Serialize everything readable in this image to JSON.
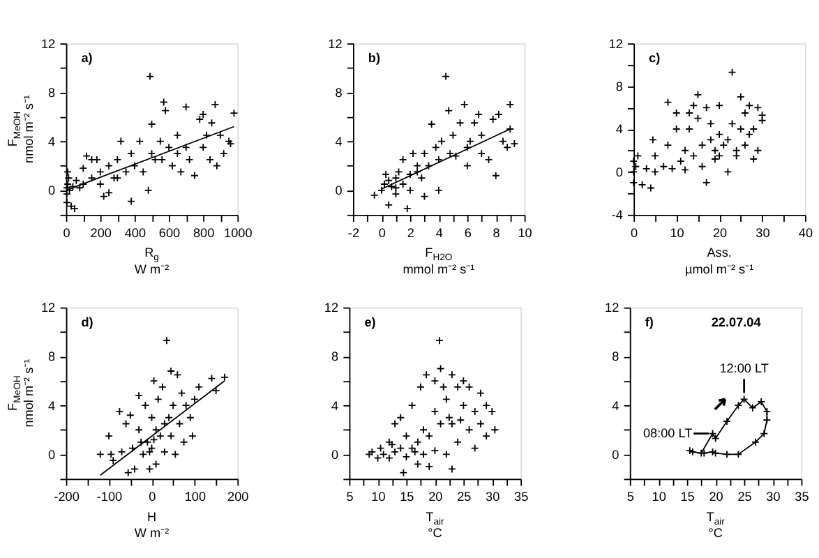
{
  "chart_data": [
    {
      "type": "scatter",
      "xlabel": "R$_{g}$\nW m⁻²",
      "ylabel": "F$_{MeOH}$\nnmol m⁻² s⁻¹",
      "annotations": [
        "a)"
      ],
      "xlim": [
        0,
        1000
      ],
      "xticks": [
        0,
        {
          "value": 100,
          "label": null
        },
        200,
        {
          "value": 300,
          "label": null
        },
        400,
        {
          "value": 500,
          "label": null
        },
        600,
        {
          "value": 700,
          "label": null
        },
        800,
        {
          "value": 900,
          "label": null
        },
        1000
      ],
      "ylim": [
        -2,
        12
      ],
      "yticks": [
        {
          "value": -2,
          "label": null
        },
        0,
        {
          "value": 2,
          "label": null
        },
        4,
        {
          "value": 6,
          "label": null
        },
        8,
        {
          "value": 10,
          "label": null
        },
        12
      ],
      "series": [
        {
          "marker": "cross",
          "color": "#000000",
          "x": [
            5,
            10,
            5,
            15,
            10,
            20,
            5,
            30,
            50,
            40,
            60,
            80,
            100,
            100,
            120,
            150,
            180,
            200,
            220,
            200,
            250,
            280,
            300,
            320,
            350,
            380,
            380,
            400,
            430,
            450,
            480,
            490,
            500,
            500,
            520,
            550,
            570,
            580,
            600,
            620,
            650,
            670,
            700,
            720,
            750,
            780,
            800,
            800,
            820,
            840,
            850,
            870,
            880,
            900,
            920,
            950,
            980,
            960,
            250,
            150,
            300,
            650,
            700,
            560
          ],
          "values": [
            0.2,
            0.5,
            -0.3,
            1,
            1.5,
            0,
            -1,
            -1.3,
            -1.5,
            0.3,
            0.8,
            0.2,
            0.5,
            1.8,
            2.8,
            1,
            2.5,
            0.5,
            -0.5,
            1.5,
            2,
            1,
            2.5,
            4,
            1.5,
            -0.9,
            3,
            2,
            4,
            1.5,
            0,
            9.3,
            5.4,
            3,
            2.5,
            4,
            7.2,
            6.5,
            3.5,
            2,
            4.5,
            1.5,
            6.8,
            2.5,
            1.2,
            5.8,
            6.2,
            3.5,
            4.5,
            2.5,
            5.5,
            7,
            2,
            4.5,
            3,
            4,
            6.3,
            3.8,
            -0.2,
            2.5,
            1,
            3,
            3.5,
            2.5
          ]
        },
        {
          "type": "line",
          "marker": "none",
          "color": "#000000",
          "x": [
            0,
            980
          ],
          "values": [
            0,
            5.2
          ]
        }
      ]
    },
    {
      "type": "scatter",
      "xlabel": "F$_{H2O}$\nmmol m⁻² s⁻¹",
      "annotations": [
        "b)"
      ],
      "xlim": [
        -2,
        10
      ],
      "xticks": [
        -2,
        {
          "value": -1,
          "label": null
        },
        0,
        {
          "value": 1,
          "label": null
        },
        2,
        {
          "value": 3,
          "label": null
        },
        4,
        {
          "value": 5,
          "label": null
        },
        6,
        {
          "value": 7,
          "label": null
        },
        8,
        {
          "value": 9,
          "label": null
        },
        10
      ],
      "ylim": [
        -2,
        12
      ],
      "yticks": [
        {
          "value": -2,
          "label": null
        },
        0,
        {
          "value": 2,
          "label": null
        },
        4,
        {
          "value": 6,
          "label": null
        },
        8,
        {
          "value": 10,
          "label": null
        },
        12
      ],
      "series": [
        {
          "marker": "cross",
          "color": "#000000",
          "x": [
            -0.5,
            0,
            0.2,
            0.3,
            0.5,
            0.7,
            1,
            1,
            1.2,
            1.5,
            1.8,
            1.5,
            2,
            2,
            2.2,
            2.5,
            2.8,
            3,
            3,
            3.3,
            3.5,
            3.8,
            4,
            4,
            4.2,
            4.5,
            4.7,
            5,
            5.2,
            5.5,
            5.8,
            6,
            6,
            6.5,
            6.8,
            7,
            7,
            7.5,
            7.8,
            8,
            8.2,
            8.5,
            8.8,
            9,
            9,
            9.3,
            1,
            0.5,
            2.5,
            6.2,
            4.8
          ],
          "values": [
            -0.4,
            0,
            0.5,
            1.3,
            -1.2,
            0.3,
            1,
            0.2,
            1.5,
            0.5,
            -1.5,
            2.5,
            1.3,
            0,
            3,
            2,
            1,
            3,
            -0.5,
            2,
            5.4,
            3.5,
            0,
            2.5,
            4,
            9.3,
            6.5,
            4.5,
            2.8,
            5.5,
            7,
            3.5,
            2,
            5.5,
            6.2,
            4.5,
            3,
            2.5,
            5.8,
            1.2,
            6.2,
            4,
            3.5,
            7,
            5,
            3.8,
            -0.3,
            0.8,
            1.5,
            4,
            3
          ]
        },
        {
          "type": "line",
          "marker": "none",
          "color": "#000000",
          "x": [
            0,
            9
          ],
          "values": [
            0.1,
            5
          ]
        }
      ]
    },
    {
      "type": "scatter",
      "xlabel": "Ass.\nµmol m⁻² s⁻¹",
      "annotations": [
        "c)"
      ],
      "xlim": [
        0,
        40
      ],
      "xticks": [
        0,
        {
          "value": 5,
          "label": null
        },
        10,
        {
          "value": 15,
          "label": null
        },
        20,
        {
          "value": 25,
          "label": null
        },
        30,
        {
          "value": 35,
          "label": null
        },
        40
      ],
      "ylim": [
        -4,
        12
      ],
      "yticks": [
        -4,
        {
          "value": -2,
          "label": null
        },
        0,
        {
          "value": 2,
          "label": null
        },
        4,
        {
          "value": 6,
          "label": null
        },
        8,
        {
          "value": 10,
          "label": null
        },
        12
      ],
      "series": [
        {
          "marker": "cross",
          "color": "#000000",
          "x": [
            0,
            0,
            0,
            0.5,
            1,
            2,
            3,
            4,
            4.5,
            5,
            5,
            7,
            8,
            8,
            9,
            10,
            10,
            11,
            12,
            12,
            13,
            13,
            14,
            14,
            15,
            15,
            16,
            16,
            17,
            17,
            18,
            18,
            19,
            20,
            20,
            20,
            21,
            22,
            22,
            23,
            23,
            24,
            25,
            25,
            26,
            26,
            27,
            27,
            28,
            28,
            29,
            29,
            30,
            30,
            24,
            19
          ],
          "values": [
            0,
            1,
            -1,
            0.5,
            1.5,
            -1.2,
            0.3,
            -1.5,
            3,
            1.5,
            0,
            0.5,
            6.5,
            2.5,
            0.3,
            5.5,
            4,
            1,
            2,
            0.2,
            5.5,
            4,
            6.2,
            1.5,
            7.2,
            5,
            0.5,
            2.5,
            6,
            -1,
            3,
            4.5,
            2,
            1.5,
            6.2,
            3.5,
            2.5,
            0,
            3,
            9.3,
            4.5,
            2,
            7,
            4,
            5.5,
            2.5,
            6.2,
            3.5,
            4,
            1.2,
            6,
            2,
            5.3,
            4.8,
            1.5,
            1.2
          ]
        }
      ]
    },
    {
      "type": "scatter",
      "xlabel": "H\nW m⁻²",
      "ylabel": "F$_{MeOH}$\nnmol m⁻² s⁻¹",
      "annotations": [
        "d)"
      ],
      "xlim": [
        -200,
        200
      ],
      "xticks": [
        -200,
        {
          "value": -150,
          "label": null
        },
        -100,
        {
          "value": -50,
          "label": null
        },
        0,
        {
          "value": 50,
          "label": null
        },
        100,
        {
          "value": 150,
          "label": null
        },
        200
      ],
      "ylim": [
        -2,
        12
      ],
      "yticks": [
        {
          "value": -2,
          "label": null
        },
        0,
        {
          "value": 2,
          "label": null
        },
        4,
        {
          "value": 6,
          "label": null
        },
        8,
        {
          "value": 10,
          "label": null
        },
        12
      ],
      "series": [
        {
          "marker": "cross",
          "color": "#000000",
          "x": [
            -120,
            -100,
            -95,
            -90,
            -75,
            -70,
            -60,
            -55,
            -50,
            -45,
            -40,
            -30,
            -30,
            -20,
            -15,
            -10,
            -5,
            0,
            0,
            5,
            10,
            10,
            15,
            20,
            25,
            30,
            35,
            40,
            45,
            50,
            55,
            60,
            65,
            70,
            75,
            80,
            90,
            95,
            100,
            110,
            140,
            150,
            170,
            -25,
            -5,
            5,
            30,
            45
          ],
          "values": [
            0,
            1.5,
            0,
            -0.5,
            3.5,
            0.2,
            2.5,
            -1.5,
            3.2,
            0.5,
            -1.2,
            4.8,
            2,
            0,
            4,
            1,
            -1.2,
            0.5,
            3,
            6,
            2,
            -0.8,
            4.5,
            1.5,
            5.5,
            0.2,
            9.3,
            3,
            6.8,
            4,
            0,
            6.5,
            2.5,
            5,
            1,
            4,
            3,
            1.5,
            4.5,
            5.5,
            6.2,
            5.2,
            6.3,
            1,
            0.2,
            1.2,
            2.5,
            1.5
          ]
        },
        {
          "type": "line",
          "marker": "none",
          "color": "#000000",
          "x": [
            -120,
            170
          ],
          "values": [
            -1.7,
            6
          ]
        }
      ]
    },
    {
      "type": "scatter",
      "xlabel": "T$_{air}$\n°C",
      "annotations": [
        "e)"
      ],
      "xlim": [
        5,
        35
      ],
      "xticks": [
        5,
        {
          "value": 7.5,
          "label": null
        },
        10,
        {
          "value": 12.5,
          "label": null
        },
        15,
        {
          "value": 17.5,
          "label": null
        },
        20,
        {
          "value": 22.5,
          "label": null
        },
        25,
        {
          "value": 27.5,
          "label": null
        },
        30,
        {
          "value": 32.5,
          "label": null
        },
        35
      ],
      "ylim": [
        -2,
        12
      ],
      "yticks": [
        {
          "value": -2,
          "label": null
        },
        0,
        {
          "value": 2,
          "label": null
        },
        4,
        {
          "value": 6,
          "label": null
        },
        8,
        {
          "value": 10,
          "label": null
        },
        12
      ],
      "series": [
        {
          "marker": "cross",
          "color": "#000000",
          "x": [
            8.5,
            9,
            10,
            10.5,
            11,
            12,
            12,
            13,
            13,
            14,
            14,
            14.5,
            15,
            15,
            16,
            16,
            17,
            17,
            17.5,
            18,
            18,
            18.5,
            19,
            19,
            20,
            20,
            20,
            20.8,
            21,
            21,
            21.5,
            22,
            22,
            23,
            23,
            23,
            24,
            24,
            25,
            25,
            26,
            26,
            27,
            27,
            28,
            28,
            29,
            29,
            30,
            30.5,
            22.5,
            24.5,
            12.5,
            16.5
          ],
          "values": [
            0,
            0.2,
            -0.3,
            0.5,
            0,
            1,
            -0.3,
            2.5,
            0.2,
            0.5,
            3,
            -1.5,
            1.5,
            -0.2,
            4,
            0.5,
            1,
            -0.8,
            5.5,
            2,
            0,
            6.5,
            1.5,
            -1,
            6,
            3.5,
            0.3,
            9.3,
            7,
            2.5,
            5.5,
            0,
            4.5,
            6.5,
            -1.2,
            2.5,
            5.5,
            1,
            4,
            6,
            2,
            5.5,
            3.5,
            0.5,
            2.5,
            5,
            1.5,
            4,
            3.5,
            2,
            3,
            2.8,
            0.8,
            0.2
          ]
        }
      ]
    },
    {
      "type": "line",
      "xlabel": "T$_{air}$\n°C",
      "annotations": [
        "f)",
        "22.07.04",
        {
          "text": "08:00 LT",
          "x": 19.5,
          "y": 1.7
        },
        {
          "text": "12:00 LT",
          "x": 25,
          "y": 4.5
        }
      ],
      "xlim": [
        5,
        35
      ],
      "xticks": [
        5,
        {
          "value": 7.5,
          "label": null
        },
        10,
        {
          "value": 12.5,
          "label": null
        },
        15,
        {
          "value": 17.5,
          "label": null
        },
        20,
        {
          "value": 22.5,
          "label": null
        },
        25,
        {
          "value": 27.5,
          "label": null
        },
        30,
        {
          "value": 32.5,
          "label": null
        },
        35
      ],
      "ylim": [
        -2,
        12
      ],
      "yticks": [
        {
          "value": -2,
          "label": null
        },
        0,
        {
          "value": 2,
          "label": null
        },
        4,
        {
          "value": 6,
          "label": null
        },
        8,
        {
          "value": 10,
          "label": null
        },
        12
      ],
      "series": [
        {
          "marker": "cross",
          "color": "#000000",
          "x": [
            15.5,
            16,
            17.5,
            19.5,
            20,
            22,
            24,
            25,
            26.5,
            28,
            29,
            29,
            28.5,
            27,
            24,
            22,
            20,
            19.5,
            18
          ],
          "values": [
            0.3,
            0.2,
            0.1,
            1.7,
            1.3,
            2.7,
            4,
            4.5,
            3.8,
            4.3,
            3.5,
            2.8,
            1.7,
            1,
            0,
            0,
            0.1,
            0.2,
            0.1
          ]
        }
      ]
    }
  ]
}
